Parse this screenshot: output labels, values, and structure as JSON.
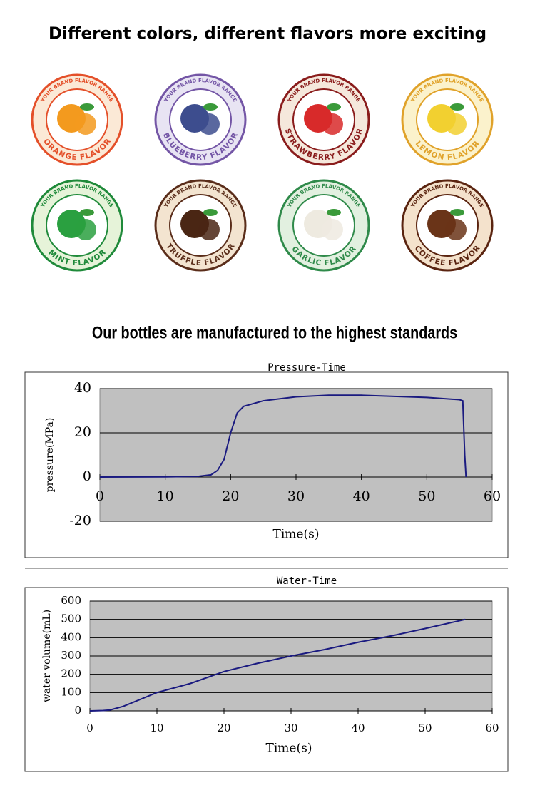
{
  "header": {
    "title": "Different colors, different flavors more exciting"
  },
  "flavors": [
    {
      "range": "YOUR BRAND FLAVOR RANGE",
      "name": "ORANGE FLAVOR",
      "color": "#e4502a",
      "background": "#fbe9d6",
      "fruit": "#f39a1e"
    },
    {
      "range": "YOUR BRAND FLAVOR RANGE",
      "name": "BLUEBERRY FLAVOR",
      "color": "#7456a6",
      "background": "#e8e4f3",
      "fruit": "#3d4d8e"
    },
    {
      "range": "YOUR BRAND FLAVOR RANGE",
      "name": "STRAWBERRY FLAVOR",
      "color": "#8a1c1c",
      "background": "#f5e8dc",
      "fruit": "#d82a2a"
    },
    {
      "range": "YOUR BRAND FLAVOR RANGE",
      "name": "LEMON FLAVOR",
      "color": "#e0a22a",
      "background": "#fbf2cc",
      "fruit": "#f2d030"
    },
    {
      "range": "YOUR BRAND FLAVOR RANGE",
      "name": "MINT FLAVOR",
      "color": "#1f8a3a",
      "background": "#e6f3d9",
      "fruit": "#2aa040"
    },
    {
      "range": "YOUR BRAND FLAVOR RANGE",
      "name": "TRUFFLE FLAVOR",
      "color": "#5a2d1a",
      "background": "#f3e4d0",
      "fruit": "#4a2614"
    },
    {
      "range": "YOUR BRAND FLAVOR RANGE",
      "name": "GARLIC FLAVOR",
      "color": "#2f8a4a",
      "background": "#e2f0e0",
      "fruit": "#eeeae0"
    },
    {
      "range": "YOUR BRAND FLAVOR RANGE",
      "name": "COFFEE FLAVOR",
      "color": "#5a2410",
      "background": "#f4e2cc",
      "fruit": "#6a3418"
    }
  ],
  "section": {
    "title": "Our bottles are manufactured to the highest standards"
  },
  "chart_data": [
    {
      "type": "line",
      "title": "Pressure-Time",
      "x_label": "Time(s)",
      "y_label": "pressure(MPa)",
      "xlim": [
        0,
        60
      ],
      "xticks": [
        0,
        10,
        20,
        30,
        40,
        50,
        60
      ],
      "ylim": [
        -20,
        40
      ],
      "yticks": [
        -20,
        0,
        20,
        40
      ],
      "grid": true,
      "series": [
        {
          "color": "#1a1a80",
          "x": [
            0,
            10,
            15,
            17,
            18,
            19,
            20,
            21,
            22,
            25,
            30,
            35,
            40,
            45,
            50,
            55,
            55.5,
            55.8,
            56
          ],
          "values": [
            0,
            0.1,
            0.3,
            1,
            3,
            8,
            20,
            29,
            32,
            34.5,
            36.3,
            37,
            37,
            36.5,
            36,
            35,
            34.5,
            10,
            0
          ]
        }
      ]
    },
    {
      "type": "line",
      "title": "Water-Time",
      "x_label": "Time(s)",
      "y_label": "water volume(mL)",
      "xlim": [
        0,
        60
      ],
      "xticks": [
        0,
        10,
        20,
        30,
        40,
        50,
        60
      ],
      "ylim": [
        0,
        600
      ],
      "yticks": [
        0,
        100,
        200,
        300,
        400,
        500,
        600
      ],
      "grid": true,
      "series": [
        {
          "color": "#1a1a80",
          "x": [
            0,
            2,
            3,
            5,
            10,
            15,
            20,
            25,
            30,
            35,
            40,
            45,
            50,
            56
          ],
          "values": [
            0,
            2,
            5,
            25,
            100,
            150,
            215,
            260,
            300,
            335,
            375,
            410,
            450,
            500
          ]
        }
      ]
    }
  ]
}
